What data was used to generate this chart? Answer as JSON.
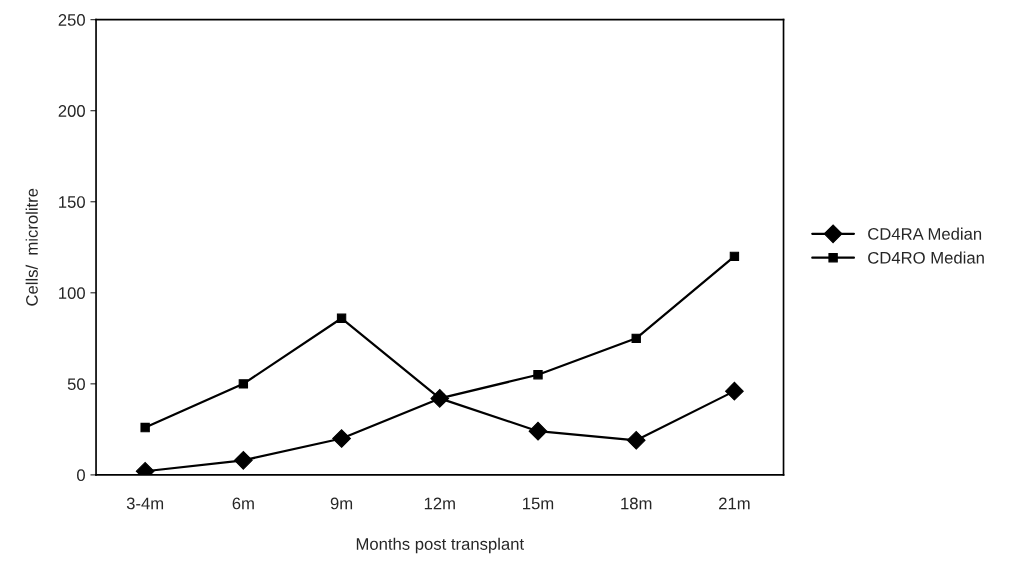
{
  "chart_data": {
    "type": "line",
    "xlabel": "Months post transplant",
    "ylabel": "Cells/  microlitre",
    "categories": [
      "3-4m",
      "6m",
      "9m",
      "12m",
      "15m",
      "18m",
      "21m"
    ],
    "series": [
      {
        "name": "CD4RA Median",
        "color": "#000000",
        "marker": "diamond",
        "values": [
          2,
          8,
          20,
          42,
          24,
          19,
          46
        ]
      },
      {
        "name": "CD4RO Median",
        "color": "#000000",
        "marker": "square",
        "values": [
          26,
          50,
          86,
          42,
          55,
          75,
          120
        ]
      }
    ],
    "ylim": [
      0,
      250
    ],
    "yticks": [
      0,
      50,
      100,
      150,
      200,
      250
    ],
    "grid": false,
    "legend": "right",
    "line_style": "solid"
  }
}
